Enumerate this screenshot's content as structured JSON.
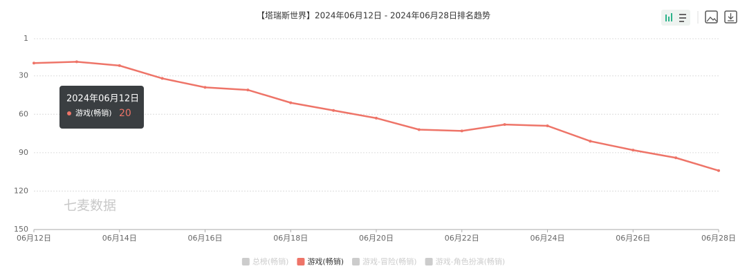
{
  "chart_data": {
    "type": "line",
    "title": "【塔瑞斯世界】2024年06月12日 - 2024年06月28日排名趋势",
    "categories": [
      "06月12日",
      null,
      "06月14日",
      null,
      "06月16日",
      null,
      "06月18日",
      null,
      "06月20日",
      null,
      "06月22日",
      null,
      "06月24日",
      null,
      "06月26日",
      null,
      "06月28日"
    ],
    "series": [
      {
        "name": "总榜(畅销)",
        "color": "#cccccc",
        "selected": false
      },
      {
        "name": "游戏(畅销)",
        "color": "#ee7468",
        "selected": true,
        "values": [
          20,
          19,
          22,
          32,
          39,
          41,
          51,
          57,
          63,
          72,
          73,
          68,
          69,
          81,
          88,
          94,
          104
        ]
      },
      {
        "name": "游戏-冒险(畅销)",
        "color": "#cccccc",
        "selected": false
      },
      {
        "name": "游戏-角色扮演(畅销)",
        "color": "#cccccc",
        "selected": false
      }
    ],
    "ylim": [
      1,
      150
    ],
    "y_inverted": true,
    "yticks": [
      1,
      30,
      60,
      90,
      120,
      150
    ],
    "grid": true,
    "tooltip_title": "2024年06月12日",
    "watermark": "七麦数据"
  }
}
